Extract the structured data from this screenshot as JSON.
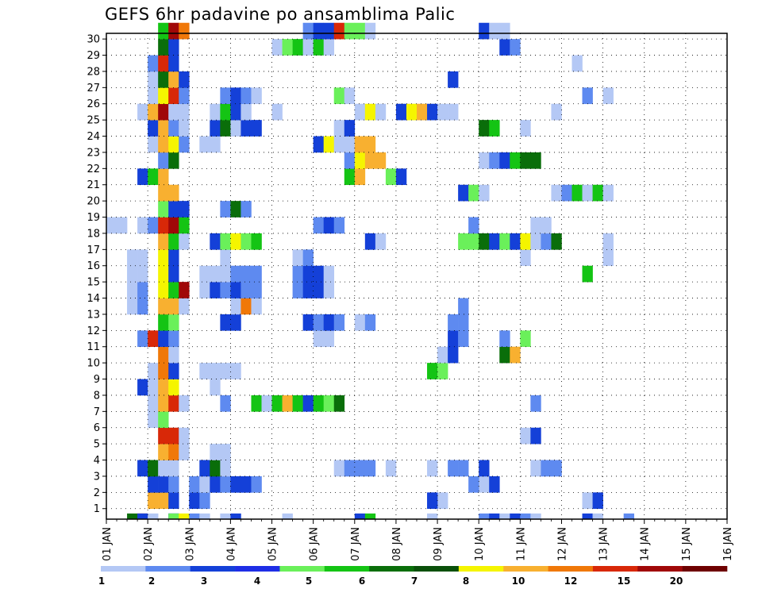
{
  "chart_data": {
    "type": "heatmap",
    "title": "GEFS 6hr padavine po ansamblima Palic",
    "y_labels": [
      "1",
      "2",
      "3",
      "4",
      "5",
      "6",
      "7",
      "8",
      "9",
      "10",
      "11",
      "12",
      "13",
      "14",
      "15",
      "16",
      "17",
      "18",
      "19",
      "20",
      "21",
      "22",
      "23",
      "24",
      "25",
      "26",
      "27",
      "28",
      "29",
      "30"
    ],
    "x_labels": [
      "01 JAN",
      "02 JAN",
      "03 JAN",
      "04 JAN",
      "05 JAN",
      "06 JAN",
      "07 JAN",
      "08 JAN",
      "09 JAN",
      "10 JAN",
      "11 JAN",
      "12 JAN",
      "13 JAN",
      "14 JAN",
      "15 JAN",
      "16 JAN"
    ],
    "grid": true,
    "legend_position": "bottom",
    "legend_levels": [
      1,
      2,
      3,
      4,
      5,
      6,
      7,
      8,
      10,
      12,
      15,
      20
    ],
    "legend_labels": [
      "1",
      "2",
      "3",
      "4",
      "5",
      "6",
      "7",
      "8",
      "10",
      "12",
      "15",
      "20"
    ],
    "legend_colors": [
      "#b4c8f5",
      "#5e8af0",
      "#1440d8",
      "#1e2ee6",
      "#6af05a",
      "#14c414",
      "#0a6e0a",
      "#0a500a",
      "#f5f500",
      "#f8b030",
      "#f07808",
      "#d82808",
      "#a00808",
      "#6e0000"
    ],
    "colors": [
      "#b4c8f5",
      "#5e8af0",
      "#1440d8",
      "#6af05a",
      "#14c414",
      "#0a6e0a",
      "#f5f500",
      "#f8b030",
      "#f07808",
      "#d82808",
      "#a00808"
    ],
    "cells": [
      [
        2,
        0,
        5
      ],
      [
        3,
        0,
        10
      ],
      [
        3,
        0,
        2
      ],
      [
        4,
        0,
        0
      ],
      [
        6,
        0,
        1
      ],
      [
        6,
        0,
        2
      ],
      [
        6,
        0,
        3
      ],
      [
        7,
        0,
        6
      ],
      [
        8,
        0,
        1
      ],
      [
        9,
        0,
        0
      ],
      [
        11,
        0,
        0
      ],
      [
        12,
        0,
        2
      ],
      [
        17,
        0,
        0
      ],
      [
        24,
        0,
        2
      ],
      [
        25,
        0,
        4
      ],
      [
        31,
        0,
        0
      ],
      [
        36,
        0,
        1
      ],
      [
        37,
        0,
        2
      ],
      [
        38,
        0,
        0
      ],
      [
        39,
        0,
        2
      ],
      [
        40,
        0,
        1
      ],
      [
        41,
        0,
        0
      ],
      [
        46,
        0,
        2
      ],
      [
        47,
        0,
        0
      ],
      [
        50,
        0,
        1
      ],
      [
        4,
        1,
        7
      ],
      [
        5,
        1,
        7
      ],
      [
        6,
        1,
        2
      ],
      [
        8,
        1,
        2
      ],
      [
        9,
        1,
        1
      ],
      [
        32,
        1,
        0
      ],
      [
        31,
        1,
        2
      ],
      [
        46,
        1,
        0
      ],
      [
        47,
        1,
        2
      ],
      [
        4,
        2,
        2
      ],
      [
        5,
        2,
        2
      ],
      [
        6,
        2,
        1
      ],
      [
        8,
        2,
        1
      ],
      [
        9,
        2,
        0
      ],
      [
        10,
        2,
        2
      ],
      [
        11,
        2,
        1
      ],
      [
        12,
        2,
        2
      ],
      [
        13,
        2,
        2
      ],
      [
        14,
        2,
        1
      ],
      [
        36,
        2,
        0
      ],
      [
        35,
        2,
        1
      ],
      [
        37,
        2,
        2
      ],
      [
        3,
        3,
        2
      ],
      [
        4,
        3,
        5
      ],
      [
        5,
        3,
        0
      ],
      [
        6,
        3,
        0
      ],
      [
        9,
        3,
        2
      ],
      [
        10,
        3,
        5
      ],
      [
        11,
        3,
        0
      ],
      [
        22,
        3,
        0
      ],
      [
        23,
        3,
        1
      ],
      [
        24,
        3,
        1
      ],
      [
        25,
        3,
        1
      ],
      [
        27,
        3,
        0
      ],
      [
        31,
        3,
        0
      ],
      [
        33,
        3,
        1
      ],
      [
        34,
        3,
        1
      ],
      [
        36,
        3,
        2
      ],
      [
        41,
        3,
        0
      ],
      [
        42,
        3,
        1
      ],
      [
        43,
        3,
        1
      ],
      [
        5,
        4,
        7
      ],
      [
        6,
        4,
        8
      ],
      [
        7,
        4,
        0
      ],
      [
        10,
        4,
        0
      ],
      [
        11,
        4,
        0
      ],
      [
        5,
        5,
        9
      ],
      [
        6,
        5,
        9
      ],
      [
        7,
        5,
        0
      ],
      [
        40,
        5,
        0
      ],
      [
        41,
        5,
        2
      ],
      [
        4,
        6,
        0
      ],
      [
        5,
        6,
        3
      ],
      [
        4,
        7,
        0
      ],
      [
        5,
        7,
        7
      ],
      [
        6,
        7,
        9
      ],
      [
        7,
        7,
        0
      ],
      [
        11,
        7,
        1
      ],
      [
        14,
        7,
        4
      ],
      [
        15,
        7,
        0
      ],
      [
        16,
        7,
        4
      ],
      [
        17,
        7,
        7
      ],
      [
        18,
        7,
        4
      ],
      [
        19,
        7,
        2
      ],
      [
        20,
        7,
        4
      ],
      [
        21,
        7,
        3
      ],
      [
        22,
        7,
        5
      ],
      [
        41,
        7,
        1
      ],
      [
        3,
        8,
        2
      ],
      [
        4,
        8,
        0
      ],
      [
        5,
        8,
        7
      ],
      [
        6,
        8,
        6
      ],
      [
        10,
        8,
        0
      ],
      [
        4,
        9,
        0
      ],
      [
        5,
        9,
        8
      ],
      [
        6,
        9,
        2
      ],
      [
        9,
        9,
        0
      ],
      [
        10,
        9,
        0
      ],
      [
        11,
        9,
        0
      ],
      [
        12,
        9,
        0
      ],
      [
        31,
        9,
        4
      ],
      [
        32,
        9,
        3
      ],
      [
        5,
        10,
        8
      ],
      [
        6,
        10,
        0
      ],
      [
        32,
        10,
        0
      ],
      [
        33,
        10,
        2
      ],
      [
        38,
        10,
        5
      ],
      [
        39,
        10,
        7
      ],
      [
        3,
        11,
        1
      ],
      [
        4,
        11,
        9
      ],
      [
        5,
        11,
        2
      ],
      [
        6,
        11,
        1
      ],
      [
        20,
        11,
        0
      ],
      [
        21,
        11,
        0
      ],
      [
        33,
        11,
        2
      ],
      [
        34,
        11,
        1
      ],
      [
        38,
        11,
        1
      ],
      [
        40,
        11,
        3
      ],
      [
        5,
        12,
        4
      ],
      [
        6,
        12,
        3
      ],
      [
        11,
        12,
        2
      ],
      [
        12,
        12,
        2
      ],
      [
        19,
        12,
        2
      ],
      [
        20,
        12,
        1
      ],
      [
        21,
        12,
        2
      ],
      [
        22,
        12,
        1
      ],
      [
        24,
        12,
        0
      ],
      [
        25,
        12,
        1
      ],
      [
        33,
        12,
        1
      ],
      [
        34,
        12,
        1
      ],
      [
        2,
        13,
        0
      ],
      [
        3,
        13,
        1
      ],
      [
        5,
        13,
        7
      ],
      [
        6,
        13,
        7
      ],
      [
        7,
        13,
        0
      ],
      [
        12,
        13,
        0
      ],
      [
        13,
        13,
        8
      ],
      [
        14,
        13,
        0
      ],
      [
        34,
        13,
        1
      ],
      [
        2,
        14,
        0
      ],
      [
        3,
        14,
        1
      ],
      [
        5,
        14,
        6
      ],
      [
        6,
        14,
        4
      ],
      [
        7,
        14,
        10
      ],
      [
        9,
        14,
        0
      ],
      [
        10,
        14,
        2
      ],
      [
        11,
        14,
        1
      ],
      [
        12,
        14,
        2
      ],
      [
        13,
        14,
        1
      ],
      [
        14,
        14,
        1
      ],
      [
        18,
        14,
        1
      ],
      [
        19,
        14,
        2
      ],
      [
        20,
        14,
        2
      ],
      [
        21,
        14,
        0
      ],
      [
        2,
        15,
        0
      ],
      [
        3,
        15,
        0
      ],
      [
        5,
        15,
        6
      ],
      [
        6,
        15,
        2
      ],
      [
        9,
        15,
        0
      ],
      [
        10,
        15,
        0
      ],
      [
        11,
        15,
        0
      ],
      [
        12,
        15,
        1
      ],
      [
        13,
        15,
        1
      ],
      [
        14,
        15,
        1
      ],
      [
        18,
        15,
        1
      ],
      [
        19,
        15,
        2
      ],
      [
        20,
        15,
        2
      ],
      [
        21,
        15,
        0
      ],
      [
        46,
        15,
        4
      ],
      [
        2,
        16,
        0
      ],
      [
        3,
        16,
        0
      ],
      [
        5,
        16,
        6
      ],
      [
        6,
        16,
        2
      ],
      [
        11,
        16,
        0
      ],
      [
        18,
        16,
        0
      ],
      [
        19,
        16,
        1
      ],
      [
        40,
        16,
        0
      ],
      [
        48,
        16,
        0
      ],
      [
        5,
        17,
        7
      ],
      [
        6,
        17,
        4
      ],
      [
        7,
        17,
        0
      ],
      [
        10,
        17,
        2
      ],
      [
        11,
        17,
        3
      ],
      [
        12,
        17,
        6
      ],
      [
        13,
        17,
        3
      ],
      [
        14,
        17,
        4
      ],
      [
        25,
        17,
        2
      ],
      [
        26,
        17,
        0
      ],
      [
        34,
        17,
        3
      ],
      [
        35,
        17,
        3
      ],
      [
        36,
        17,
        5
      ],
      [
        37,
        17,
        2
      ],
      [
        38,
        17,
        3
      ],
      [
        39,
        17,
        2
      ],
      [
        40,
        17,
        6
      ],
      [
        41,
        17,
        0
      ],
      [
        42,
        17,
        1
      ],
      [
        43,
        17,
        5
      ],
      [
        48,
        17,
        0
      ],
      [
        0,
        18,
        0
      ],
      [
        1,
        18,
        0
      ],
      [
        3,
        18,
        0
      ],
      [
        4,
        18,
        1
      ],
      [
        5,
        18,
        9
      ],
      [
        6,
        18,
        10
      ],
      [
        7,
        18,
        4
      ],
      [
        20,
        18,
        1
      ],
      [
        21,
        18,
        2
      ],
      [
        22,
        18,
        1
      ],
      [
        35,
        18,
        1
      ],
      [
        41,
        18,
        0
      ],
      [
        42,
        18,
        0
      ],
      [
        5,
        19,
        3
      ],
      [
        6,
        19,
        2
      ],
      [
        7,
        19,
        2
      ],
      [
        11,
        19,
        1
      ],
      [
        12,
        19,
        5
      ],
      [
        13,
        19,
        1
      ],
      [
        5,
        20,
        7
      ],
      [
        6,
        20,
        7
      ],
      [
        34,
        20,
        2
      ],
      [
        35,
        20,
        3
      ],
      [
        36,
        20,
        0
      ],
      [
        43,
        20,
        0
      ],
      [
        44,
        20,
        1
      ],
      [
        45,
        20,
        4
      ],
      [
        46,
        20,
        0
      ],
      [
        47,
        20,
        4
      ],
      [
        48,
        20,
        0
      ],
      [
        3,
        21,
        2
      ],
      [
        4,
        21,
        4
      ],
      [
        5,
        21,
        7
      ],
      [
        23,
        21,
        4
      ],
      [
        24,
        21,
        7
      ],
      [
        27,
        21,
        3
      ],
      [
        28,
        21,
        2
      ],
      [
        5,
        22,
        1
      ],
      [
        6,
        22,
        5
      ],
      [
        23,
        22,
        1
      ],
      [
        24,
        22,
        6
      ],
      [
        25,
        22,
        7
      ],
      [
        26,
        22,
        7
      ],
      [
        36,
        22,
        0
      ],
      [
        37,
        22,
        1
      ],
      [
        38,
        22,
        2
      ],
      [
        39,
        22,
        4
      ],
      [
        40,
        22,
        5
      ],
      [
        41,
        22,
        5
      ],
      [
        4,
        23,
        0
      ],
      [
        5,
        23,
        7
      ],
      [
        6,
        23,
        6
      ],
      [
        7,
        23,
        1
      ],
      [
        9,
        23,
        0
      ],
      [
        10,
        23,
        0
      ],
      [
        20,
        23,
        2
      ],
      [
        21,
        23,
        6
      ],
      [
        22,
        23,
        0
      ],
      [
        23,
        23,
        0
      ],
      [
        24,
        23,
        7
      ],
      [
        25,
        23,
        7
      ],
      [
        4,
        24,
        2
      ],
      [
        5,
        24,
        7
      ],
      [
        6,
        24,
        1
      ],
      [
        7,
        24,
        0
      ],
      [
        10,
        24,
        2
      ],
      [
        11,
        24,
        5
      ],
      [
        12,
        24,
        0
      ],
      [
        13,
        24,
        2
      ],
      [
        14,
        24,
        2
      ],
      [
        22,
        24,
        0
      ],
      [
        23,
        24,
        2
      ],
      [
        36,
        24,
        5
      ],
      [
        37,
        24,
        4
      ],
      [
        40,
        24,
        0
      ],
      [
        3,
        25,
        0
      ],
      [
        4,
        25,
        7
      ],
      [
        5,
        25,
        10
      ],
      [
        6,
        25,
        0
      ],
      [
        7,
        25,
        0
      ],
      [
        10,
        25,
        0
      ],
      [
        11,
        25,
        4
      ],
      [
        12,
        25,
        2
      ],
      [
        13,
        25,
        0
      ],
      [
        16,
        25,
        0
      ],
      [
        24,
        25,
        0
      ],
      [
        25,
        25,
        6
      ],
      [
        26,
        25,
        0
      ],
      [
        28,
        25,
        2
      ],
      [
        29,
        25,
        6
      ],
      [
        30,
        25,
        7
      ],
      [
        31,
        25,
        2
      ],
      [
        32,
        25,
        0
      ],
      [
        33,
        25,
        0
      ],
      [
        43,
        25,
        0
      ],
      [
        4,
        26,
        0
      ],
      [
        5,
        26,
        6
      ],
      [
        6,
        26,
        9
      ],
      [
        7,
        26,
        1
      ],
      [
        11,
        26,
        1
      ],
      [
        12,
        26,
        2
      ],
      [
        13,
        26,
        1
      ],
      [
        14,
        26,
        0
      ],
      [
        22,
        26,
        3
      ],
      [
        23,
        26,
        0
      ],
      [
        46,
        26,
        1
      ],
      [
        48,
        26,
        0
      ],
      [
        4,
        27,
        0
      ],
      [
        5,
        27,
        5
      ],
      [
        6,
        27,
        7
      ],
      [
        7,
        27,
        2
      ],
      [
        33,
        27,
        2
      ],
      [
        4,
        28,
        1
      ],
      [
        5,
        28,
        9
      ],
      [
        6,
        28,
        2
      ],
      [
        45,
        28,
        0
      ],
      [
        5,
        29,
        5
      ],
      [
        6,
        29,
        2
      ],
      [
        16,
        29,
        0
      ],
      [
        17,
        29,
        3
      ],
      [
        18,
        29,
        4
      ],
      [
        19,
        29,
        0
      ],
      [
        20,
        29,
        4
      ],
      [
        21,
        29,
        0
      ],
      [
        38,
        29,
        2
      ],
      [
        39,
        29,
        1
      ],
      [
        5,
        30,
        4
      ],
      [
        6,
        30,
        10
      ],
      [
        7,
        30,
        8
      ],
      [
        19,
        30,
        1
      ],
      [
        20,
        30,
        2
      ],
      [
        21,
        30,
        2
      ],
      [
        22,
        30,
        9
      ],
      [
        23,
        30,
        3
      ],
      [
        24,
        30,
        3
      ],
      [
        25,
        30,
        0
      ],
      [
        36,
        30,
        2
      ],
      [
        37,
        30,
        0
      ],
      [
        38,
        30,
        0
      ]
    ]
  }
}
